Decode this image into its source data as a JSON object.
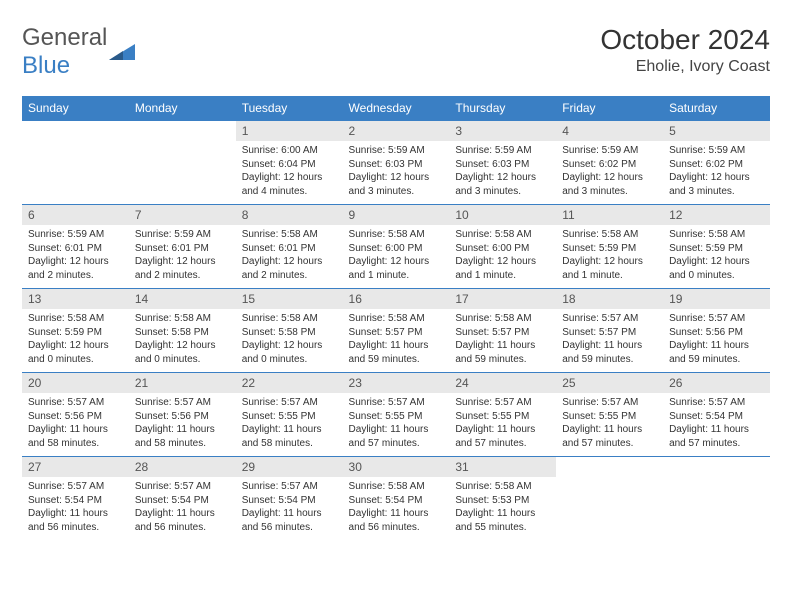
{
  "colors": {
    "header_bg": "#3a7fc4",
    "header_text": "#ffffff",
    "daynum_bg": "#e8e8e8",
    "border": "#3a7fc4",
    "logo_gray": "#555555",
    "logo_blue": "#3a7fc4"
  },
  "logo": {
    "text_gray": "General",
    "text_blue": "Blue"
  },
  "title": "October 2024",
  "location": "Eholie, Ivory Coast",
  "day_names": [
    "Sunday",
    "Monday",
    "Tuesday",
    "Wednesday",
    "Thursday",
    "Friday",
    "Saturday"
  ],
  "weeks": [
    [
      {
        "n": "",
        "sr": "",
        "ss": "",
        "dl": ""
      },
      {
        "n": "",
        "sr": "",
        "ss": "",
        "dl": ""
      },
      {
        "n": "1",
        "sr": "Sunrise: 6:00 AM",
        "ss": "Sunset: 6:04 PM",
        "dl": "Daylight: 12 hours and 4 minutes."
      },
      {
        "n": "2",
        "sr": "Sunrise: 5:59 AM",
        "ss": "Sunset: 6:03 PM",
        "dl": "Daylight: 12 hours and 3 minutes."
      },
      {
        "n": "3",
        "sr": "Sunrise: 5:59 AM",
        "ss": "Sunset: 6:03 PM",
        "dl": "Daylight: 12 hours and 3 minutes."
      },
      {
        "n": "4",
        "sr": "Sunrise: 5:59 AM",
        "ss": "Sunset: 6:02 PM",
        "dl": "Daylight: 12 hours and 3 minutes."
      },
      {
        "n": "5",
        "sr": "Sunrise: 5:59 AM",
        "ss": "Sunset: 6:02 PM",
        "dl": "Daylight: 12 hours and 3 minutes."
      }
    ],
    [
      {
        "n": "6",
        "sr": "Sunrise: 5:59 AM",
        "ss": "Sunset: 6:01 PM",
        "dl": "Daylight: 12 hours and 2 minutes."
      },
      {
        "n": "7",
        "sr": "Sunrise: 5:59 AM",
        "ss": "Sunset: 6:01 PM",
        "dl": "Daylight: 12 hours and 2 minutes."
      },
      {
        "n": "8",
        "sr": "Sunrise: 5:58 AM",
        "ss": "Sunset: 6:01 PM",
        "dl": "Daylight: 12 hours and 2 minutes."
      },
      {
        "n": "9",
        "sr": "Sunrise: 5:58 AM",
        "ss": "Sunset: 6:00 PM",
        "dl": "Daylight: 12 hours and 1 minute."
      },
      {
        "n": "10",
        "sr": "Sunrise: 5:58 AM",
        "ss": "Sunset: 6:00 PM",
        "dl": "Daylight: 12 hours and 1 minute."
      },
      {
        "n": "11",
        "sr": "Sunrise: 5:58 AM",
        "ss": "Sunset: 5:59 PM",
        "dl": "Daylight: 12 hours and 1 minute."
      },
      {
        "n": "12",
        "sr": "Sunrise: 5:58 AM",
        "ss": "Sunset: 5:59 PM",
        "dl": "Daylight: 12 hours and 0 minutes."
      }
    ],
    [
      {
        "n": "13",
        "sr": "Sunrise: 5:58 AM",
        "ss": "Sunset: 5:59 PM",
        "dl": "Daylight: 12 hours and 0 minutes."
      },
      {
        "n": "14",
        "sr": "Sunrise: 5:58 AM",
        "ss": "Sunset: 5:58 PM",
        "dl": "Daylight: 12 hours and 0 minutes."
      },
      {
        "n": "15",
        "sr": "Sunrise: 5:58 AM",
        "ss": "Sunset: 5:58 PM",
        "dl": "Daylight: 12 hours and 0 minutes."
      },
      {
        "n": "16",
        "sr": "Sunrise: 5:58 AM",
        "ss": "Sunset: 5:57 PM",
        "dl": "Daylight: 11 hours and 59 minutes."
      },
      {
        "n": "17",
        "sr": "Sunrise: 5:58 AM",
        "ss": "Sunset: 5:57 PM",
        "dl": "Daylight: 11 hours and 59 minutes."
      },
      {
        "n": "18",
        "sr": "Sunrise: 5:57 AM",
        "ss": "Sunset: 5:57 PM",
        "dl": "Daylight: 11 hours and 59 minutes."
      },
      {
        "n": "19",
        "sr": "Sunrise: 5:57 AM",
        "ss": "Sunset: 5:56 PM",
        "dl": "Daylight: 11 hours and 59 minutes."
      }
    ],
    [
      {
        "n": "20",
        "sr": "Sunrise: 5:57 AM",
        "ss": "Sunset: 5:56 PM",
        "dl": "Daylight: 11 hours and 58 minutes."
      },
      {
        "n": "21",
        "sr": "Sunrise: 5:57 AM",
        "ss": "Sunset: 5:56 PM",
        "dl": "Daylight: 11 hours and 58 minutes."
      },
      {
        "n": "22",
        "sr": "Sunrise: 5:57 AM",
        "ss": "Sunset: 5:55 PM",
        "dl": "Daylight: 11 hours and 58 minutes."
      },
      {
        "n": "23",
        "sr": "Sunrise: 5:57 AM",
        "ss": "Sunset: 5:55 PM",
        "dl": "Daylight: 11 hours and 57 minutes."
      },
      {
        "n": "24",
        "sr": "Sunrise: 5:57 AM",
        "ss": "Sunset: 5:55 PM",
        "dl": "Daylight: 11 hours and 57 minutes."
      },
      {
        "n": "25",
        "sr": "Sunrise: 5:57 AM",
        "ss": "Sunset: 5:55 PM",
        "dl": "Daylight: 11 hours and 57 minutes."
      },
      {
        "n": "26",
        "sr": "Sunrise: 5:57 AM",
        "ss": "Sunset: 5:54 PM",
        "dl": "Daylight: 11 hours and 57 minutes."
      }
    ],
    [
      {
        "n": "27",
        "sr": "Sunrise: 5:57 AM",
        "ss": "Sunset: 5:54 PM",
        "dl": "Daylight: 11 hours and 56 minutes."
      },
      {
        "n": "28",
        "sr": "Sunrise: 5:57 AM",
        "ss": "Sunset: 5:54 PM",
        "dl": "Daylight: 11 hours and 56 minutes."
      },
      {
        "n": "29",
        "sr": "Sunrise: 5:57 AM",
        "ss": "Sunset: 5:54 PM",
        "dl": "Daylight: 11 hours and 56 minutes."
      },
      {
        "n": "30",
        "sr": "Sunrise: 5:58 AM",
        "ss": "Sunset: 5:54 PM",
        "dl": "Daylight: 11 hours and 56 minutes."
      },
      {
        "n": "31",
        "sr": "Sunrise: 5:58 AM",
        "ss": "Sunset: 5:53 PM",
        "dl": "Daylight: 11 hours and 55 minutes."
      },
      {
        "n": "",
        "sr": "",
        "ss": "",
        "dl": ""
      },
      {
        "n": "",
        "sr": "",
        "ss": "",
        "dl": ""
      }
    ]
  ]
}
